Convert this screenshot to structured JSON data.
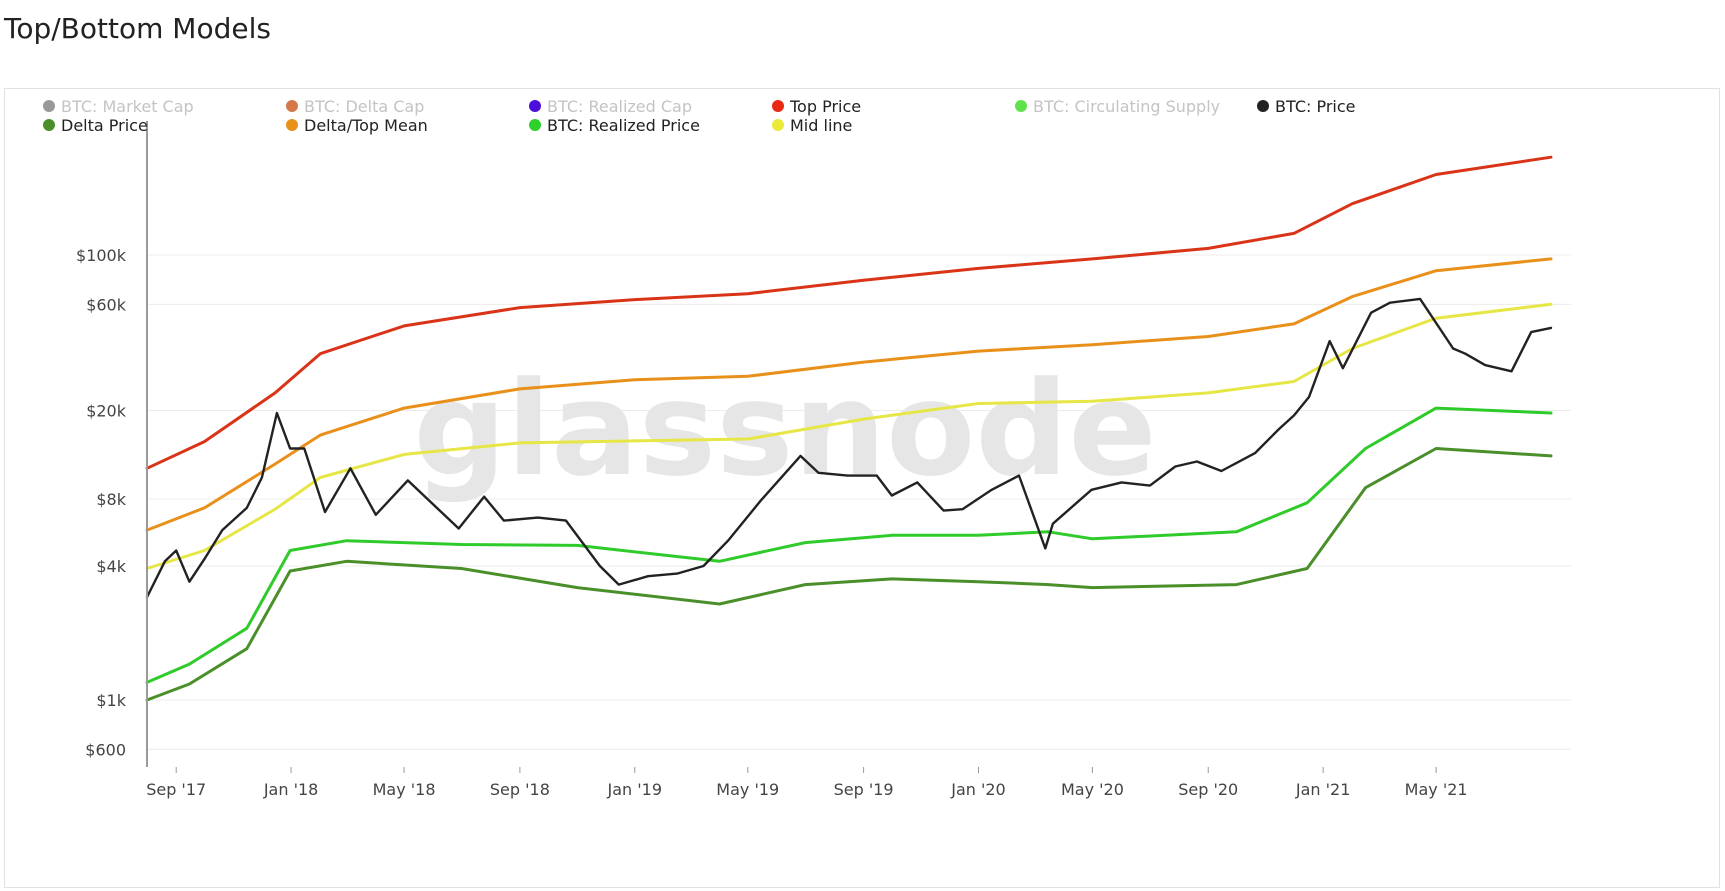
{
  "page": {
    "title": "Top/Bottom Models"
  },
  "watermark": "glassnode",
  "chart_data": {
    "type": "line",
    "title": "",
    "xlabel": "",
    "ylabel": "",
    "yscale": "log",
    "ylim": [
      500,
      400000
    ],
    "x_ticks": [
      "Sep '17",
      "Jan '18",
      "May '18",
      "Sep '18",
      "Jan '19",
      "May '19",
      "Sep '19",
      "Jan '20",
      "May '20",
      "Sep '20",
      "Jan '21",
      "May '21"
    ],
    "y_ticks": [
      {
        "label": "$600",
        "value": 600
      },
      {
        "label": "$1k",
        "value": 1000
      },
      {
        "label": "$4k",
        "value": 4000
      },
      {
        "label": "$8k",
        "value": 8000
      },
      {
        "label": "$20k",
        "value": 20000
      },
      {
        "label": "$60k",
        "value": 60000
      },
      {
        "label": "$100k",
        "value": 100000
      }
    ],
    "grid": true,
    "legend_position": "top",
    "legend": [
      {
        "name": "BTC: Market Cap",
        "color": "#999999",
        "active": false
      },
      {
        "name": "BTC: Delta Cap",
        "color": "#d4784a",
        "active": false
      },
      {
        "name": "BTC: Realized Cap",
        "color": "#4a0fd8",
        "active": false
      },
      {
        "name": "Top Price",
        "color": "#e82a14",
        "active": true
      },
      {
        "name": "BTC: Circulating Supply",
        "color": "#5ee14a",
        "active": false
      },
      {
        "name": "BTC: Price",
        "color": "#222222",
        "active": true
      },
      {
        "name": "Delta Price",
        "color": "#4a8f2a",
        "active": true
      },
      {
        "name": "Delta/Top Mean",
        "color": "#e8901a",
        "active": true
      },
      {
        "name": "BTC: Realized Price",
        "color": "#2ed02a",
        "active": true
      },
      {
        "name": "Mid line",
        "color": "#eaea3a",
        "active": true
      }
    ],
    "series": [
      {
        "name": "Top Price",
        "color": "#d93418",
        "x": [
          "2017-08-01",
          "2017-10-01",
          "2017-12-15",
          "2018-02-01",
          "2018-05-01",
          "2018-09-01",
          "2019-01-01",
          "2019-05-01",
          "2019-09-01",
          "2020-01-01",
          "2020-05-01",
          "2020-09-01",
          "2020-12-01",
          "2021-02-01",
          "2021-05-01",
          "2021-08-31"
        ],
        "values": [
          11000,
          14500,
          24000,
          36000,
          48000,
          58000,
          63000,
          67000,
          77000,
          87000,
          96000,
          107000,
          125000,
          170000,
          230000,
          275000
        ]
      },
      {
        "name": "Delta/Top Mean",
        "color": "#e8901a",
        "x": [
          "2017-08-01",
          "2017-10-01",
          "2017-12-15",
          "2018-02-01",
          "2018-05-01",
          "2018-09-01",
          "2019-01-01",
          "2019-05-01",
          "2019-09-01",
          "2020-01-01",
          "2020-05-01",
          "2020-09-01",
          "2020-12-01",
          "2021-02-01",
          "2021-05-01",
          "2021-08-31"
        ],
        "values": [
          5800,
          7300,
          11500,
          15500,
          20500,
          25000,
          27500,
          28500,
          33000,
          37000,
          39500,
          43000,
          49000,
          65000,
          85000,
          96000
        ]
      },
      {
        "name": "Mid line",
        "color": "#e6e646",
        "x": [
          "2017-08-01",
          "2017-10-01",
          "2017-12-15",
          "2018-02-01",
          "2018-05-01",
          "2018-09-01",
          "2019-01-01",
          "2019-05-01",
          "2019-09-01",
          "2020-01-01",
          "2020-05-01",
          "2020-09-01",
          "2020-12-01",
          "2021-02-01",
          "2021-05-01",
          "2021-08-31"
        ],
        "values": [
          3900,
          4700,
          7200,
          10000,
          12700,
          14300,
          14600,
          14900,
          18300,
          21500,
          22000,
          24000,
          27000,
          38000,
          52000,
          60000
        ]
      },
      {
        "name": "BTC: Realized Price",
        "color": "#2ecb2a",
        "x": [
          "2017-08-01",
          "2017-09-15",
          "2017-11-15",
          "2017-12-31",
          "2018-03-01",
          "2018-07-01",
          "2018-11-01",
          "2019-04-01",
          "2019-07-01",
          "2019-10-01",
          "2020-01-01",
          "2020-03-15",
          "2020-05-01",
          "2020-10-01",
          "2020-12-15",
          "2021-02-15",
          "2021-05-01",
          "2021-08-31"
        ],
        "values": [
          1200,
          1450,
          2100,
          4700,
          5200,
          5000,
          4950,
          4200,
          5100,
          5500,
          5500,
          5700,
          5300,
          5700,
          7700,
          13500,
          20500,
          19500
        ]
      },
      {
        "name": "Delta Price",
        "color": "#4a8f2a",
        "x": [
          "2017-08-01",
          "2017-09-15",
          "2017-11-15",
          "2017-12-31",
          "2018-03-01",
          "2018-07-01",
          "2018-11-01",
          "2019-04-01",
          "2019-07-01",
          "2019-10-01",
          "2020-01-01",
          "2020-03-15",
          "2020-05-01",
          "2020-10-01",
          "2020-12-15",
          "2021-02-15",
          "2021-05-01",
          "2021-08-31"
        ],
        "values": [
          1000,
          1180,
          1700,
          3800,
          4200,
          3900,
          3200,
          2700,
          3300,
          3500,
          3400,
          3300,
          3200,
          3300,
          3900,
          9000,
          13500,
          12500
        ]
      },
      {
        "name": "BTC: Price",
        "color": "#222222",
        "x": [
          "2017-08-01",
          "2017-08-20",
          "2017-09-01",
          "2017-09-15",
          "2017-10-01",
          "2017-10-20",
          "2017-11-15",
          "2017-12-01",
          "2017-12-17",
          "2017-12-31",
          "2018-01-15",
          "2018-02-06",
          "2018-03-05",
          "2018-04-01",
          "2018-05-05",
          "2018-06-28",
          "2018-07-25",
          "2018-08-15",
          "2018-09-20",
          "2018-10-20",
          "2018-11-25",
          "2018-12-15",
          "2019-01-15",
          "2019-02-15",
          "2019-03-15",
          "2019-04-10",
          "2019-05-15",
          "2019-06-26",
          "2019-07-15",
          "2019-08-15",
          "2019-09-15",
          "2019-10-01",
          "2019-10-28",
          "2019-11-25",
          "2019-12-15",
          "2020-01-15",
          "2020-02-13",
          "2020-03-12",
          "2020-03-20",
          "2020-04-30",
          "2020-06-01",
          "2020-07-01",
          "2020-07-28",
          "2020-08-20",
          "2020-09-15",
          "2020-10-21",
          "2020-11-15",
          "2020-12-01",
          "2020-12-17",
          "2021-01-08",
          "2021-01-22",
          "2021-02-21",
          "2021-03-13",
          "2021-04-14",
          "2021-05-19",
          "2021-06-01",
          "2021-06-22",
          "2021-07-20",
          "2021-08-10",
          "2021-08-31"
        ],
        "values": [
          2900,
          4200,
          4700,
          3400,
          4300,
          5800,
          7300,
          10000,
          19500,
          13500,
          13500,
          7000,
          11000,
          6800,
          9700,
          5900,
          8200,
          6400,
          6600,
          6400,
          4000,
          3300,
          3600,
          3700,
          4000,
          5200,
          7900,
          12500,
          10500,
          10200,
          10200,
          8300,
          9500,
          7100,
          7200,
          8800,
          10200,
          4800,
          6200,
          8800,
          9500,
          9200,
          11200,
          11800,
          10700,
          12900,
          16500,
          19000,
          23000,
          41000,
          31000,
          55000,
          61000,
          63500,
          38000,
          36000,
          32000,
          30000,
          45000,
          47000
        ]
      }
    ]
  }
}
